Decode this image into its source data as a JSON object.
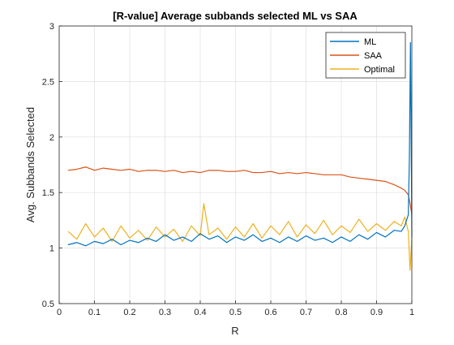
{
  "chart_data": {
    "type": "line",
    "title": "[R-value] Average subbands selected ML vs SAA",
    "xlabel": "R",
    "ylabel": "Avg. Subbands Selected",
    "xlim": [
      0,
      1
    ],
    "ylim": [
      0.5,
      3
    ],
    "xticks": [
      "0",
      "0.1",
      "0.2",
      "0.3",
      "0.4",
      "0.5",
      "0.6",
      "0.7",
      "0.8",
      "0.9",
      "1"
    ],
    "yticks": [
      "0.5",
      "1",
      "1.5",
      "2",
      "2.5",
      "3"
    ],
    "grid": true,
    "legend_position": "top-right",
    "series": [
      {
        "name": "ML",
        "color": "#0072BD",
        "x": [
          0.025,
          0.05,
          0.075,
          0.1,
          0.125,
          0.15,
          0.175,
          0.2,
          0.225,
          0.25,
          0.275,
          0.3,
          0.325,
          0.35,
          0.375,
          0.4,
          0.425,
          0.45,
          0.475,
          0.5,
          0.525,
          0.55,
          0.575,
          0.6,
          0.625,
          0.65,
          0.675,
          0.7,
          0.725,
          0.75,
          0.775,
          0.8,
          0.825,
          0.85,
          0.875,
          0.9,
          0.925,
          0.95,
          0.97,
          0.98,
          0.99,
          0.993,
          0.996,
          0.999,
          1.0
        ],
        "y": [
          1.03,
          1.05,
          1.02,
          1.06,
          1.04,
          1.08,
          1.03,
          1.07,
          1.05,
          1.09,
          1.06,
          1.12,
          1.07,
          1.1,
          1.06,
          1.13,
          1.08,
          1.11,
          1.05,
          1.1,
          1.07,
          1.12,
          1.06,
          1.09,
          1.05,
          1.1,
          1.06,
          1.11,
          1.07,
          1.09,
          1.05,
          1.1,
          1.06,
          1.12,
          1.08,
          1.14,
          1.1,
          1.16,
          1.15,
          1.2,
          1.3,
          1.8,
          2.85,
          1.6,
          1.1
        ]
      },
      {
        "name": "SAA",
        "color": "#D95319",
        "x": [
          0.025,
          0.05,
          0.075,
          0.1,
          0.125,
          0.15,
          0.175,
          0.2,
          0.225,
          0.25,
          0.275,
          0.3,
          0.325,
          0.35,
          0.375,
          0.4,
          0.425,
          0.45,
          0.475,
          0.5,
          0.525,
          0.55,
          0.575,
          0.6,
          0.625,
          0.65,
          0.675,
          0.7,
          0.725,
          0.75,
          0.775,
          0.8,
          0.825,
          0.85,
          0.875,
          0.9,
          0.925,
          0.95,
          0.97,
          0.98,
          0.99,
          0.995,
          1.0
        ],
        "y": [
          1.7,
          1.71,
          1.73,
          1.7,
          1.72,
          1.71,
          1.7,
          1.71,
          1.69,
          1.7,
          1.7,
          1.69,
          1.7,
          1.68,
          1.69,
          1.68,
          1.7,
          1.7,
          1.69,
          1.69,
          1.7,
          1.68,
          1.68,
          1.69,
          1.67,
          1.68,
          1.67,
          1.68,
          1.67,
          1.66,
          1.66,
          1.66,
          1.64,
          1.63,
          1.62,
          1.61,
          1.6,
          1.57,
          1.54,
          1.52,
          1.48,
          1.4,
          1.3
        ]
      },
      {
        "name": "Optimal",
        "color": "#EDB120",
        "x": [
          0.025,
          0.05,
          0.075,
          0.1,
          0.125,
          0.15,
          0.175,
          0.2,
          0.225,
          0.25,
          0.275,
          0.3,
          0.325,
          0.35,
          0.375,
          0.4,
          0.41,
          0.425,
          0.45,
          0.475,
          0.5,
          0.525,
          0.55,
          0.575,
          0.6,
          0.625,
          0.65,
          0.675,
          0.7,
          0.725,
          0.75,
          0.775,
          0.8,
          0.825,
          0.85,
          0.875,
          0.9,
          0.925,
          0.95,
          0.97,
          0.98,
          0.99,
          0.995,
          1.0
        ],
        "y": [
          1.15,
          1.08,
          1.22,
          1.1,
          1.18,
          1.06,
          1.2,
          1.09,
          1.16,
          1.07,
          1.19,
          1.1,
          1.17,
          1.06,
          1.2,
          1.11,
          1.4,
          1.12,
          1.18,
          1.08,
          1.19,
          1.1,
          1.22,
          1.09,
          1.2,
          1.12,
          1.24,
          1.1,
          1.21,
          1.13,
          1.25,
          1.12,
          1.2,
          1.14,
          1.26,
          1.15,
          1.22,
          1.16,
          1.24,
          1.2,
          1.28,
          1.15,
          0.8,
          1.1
        ]
      }
    ]
  }
}
